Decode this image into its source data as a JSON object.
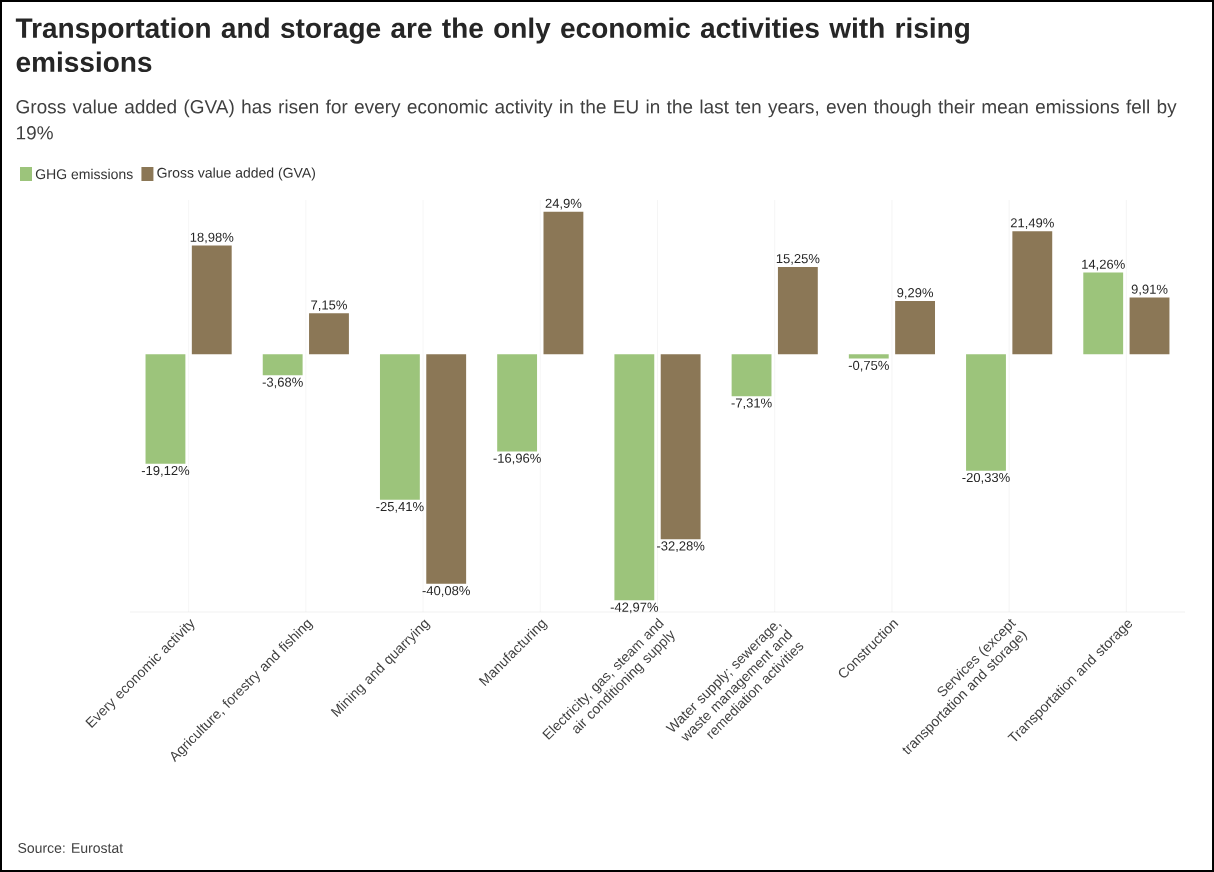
{
  "chart_data": {
    "type": "bar",
    "title": "Transportation and storage are the only economic activities with rising emissions",
    "subtitle": "Gross value added (GVA) has risen for every economic activity in the EU in the last ten years, even though their mean emissions fell by 19%",
    "categories": [
      "Every economic activity",
      "Agriculture, forestry and fishing",
      "Mining and quarrying",
      "Manufacturing",
      "Electricity, gas, steam and air conditioning supply",
      "Water supply; sewerage, waste management and remediation activities",
      "Construction",
      "Services (except transportation and storage)",
      "Transportation and storage"
    ],
    "series": [
      {
        "name": "GHG emissions",
        "color": "#9cc47b",
        "values": [
          -19.12,
          -3.68,
          -25.41,
          -16.96,
          -42.97,
          -7.31,
          -0.75,
          -20.33,
          14.26
        ],
        "value_labels": [
          "-19,12%",
          "-3,68%",
          "-25,41%",
          "-16,96%",
          "-42,97%",
          "-7,31%",
          "-0,75%",
          "-20,33%",
          "14,26%"
        ]
      },
      {
        "name": "Gross value added (GVA)",
        "color": "#8b7756",
        "values": [
          18.98,
          7.15,
          -40.08,
          24.9,
          -32.28,
          15.25,
          9.29,
          21.49,
          9.91
        ],
        "value_labels": [
          "18,98%",
          "7,15%",
          "-40,08%",
          "24,9%",
          "-32,28%",
          "15,25%",
          "9,29%",
          "21,49%",
          "9,91%"
        ]
      }
    ],
    "grid": "x",
    "legend": "top left",
    "annotations": [
      "Source: Eurostat"
    ]
  }
}
